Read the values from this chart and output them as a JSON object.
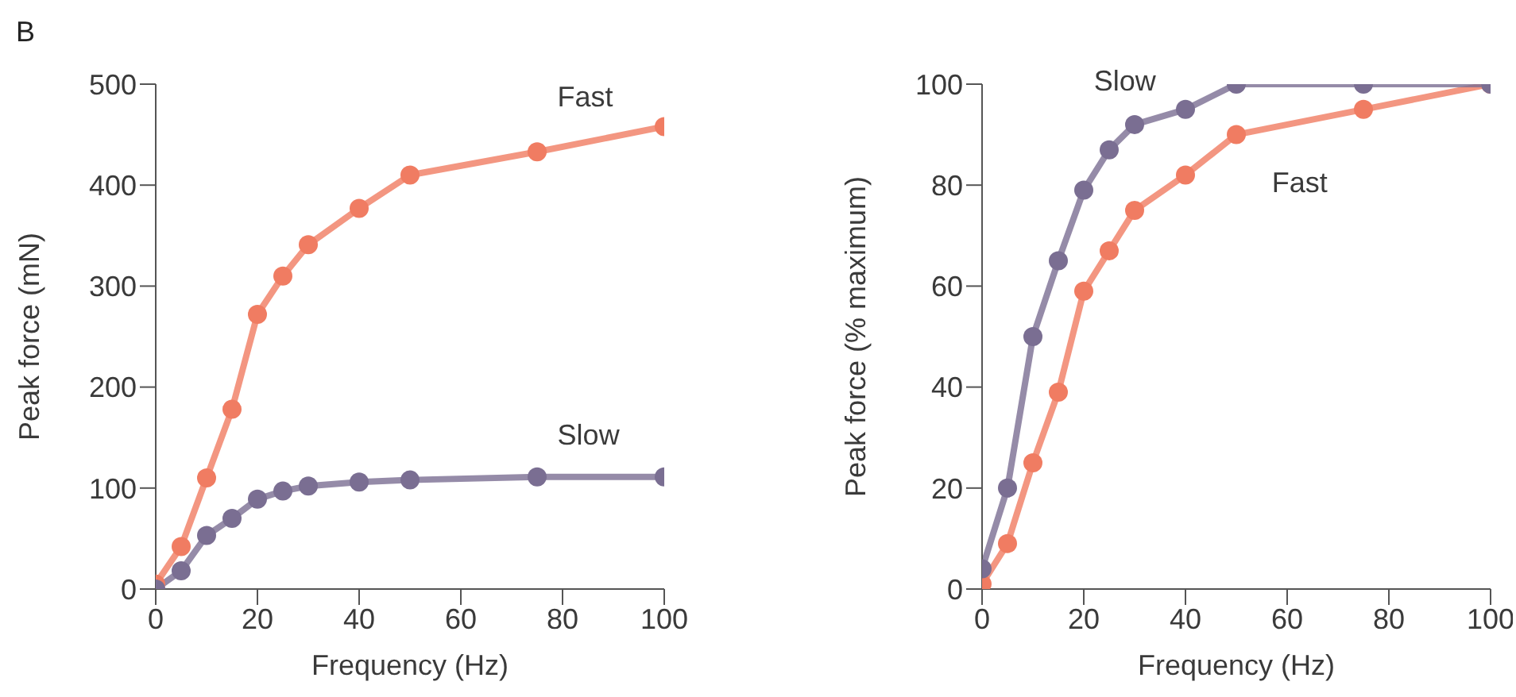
{
  "chart_data": [
    {
      "type": "line",
      "title": "B",
      "xlabel": "Frequency (Hz)",
      "ylabel": "Peak force (mN)",
      "x": [
        0,
        5,
        10,
        15,
        20,
        25,
        30,
        40,
        50,
        75,
        100
      ],
      "xlim": [
        0,
        100
      ],
      "xticks": [
        0,
        20,
        40,
        60,
        80,
        100
      ],
      "ylim": [
        0,
        500
      ],
      "yticks": [
        0,
        100,
        200,
        300,
        400,
        500
      ],
      "grid": false,
      "legend": false,
      "marker": "circle",
      "line_style": "solid",
      "series": [
        {
          "name": "Fast",
          "color": "#f07c62",
          "values": [
            5,
            42,
            110,
            178,
            272,
            310,
            341,
            377,
            410,
            433,
            458
          ]
        },
        {
          "name": "Slow",
          "color": "#7a6e92",
          "values": [
            0,
            18,
            53,
            70,
            89,
            97,
            102,
            106,
            108,
            111,
            111
          ]
        }
      ]
    },
    {
      "type": "line",
      "xlabel": "Frequency (Hz)",
      "ylabel": "Peak force (% maximum)",
      "x": [
        0,
        5,
        10,
        15,
        20,
        25,
        30,
        40,
        50,
        75,
        100
      ],
      "xlim": [
        0,
        100
      ],
      "xticks": [
        0,
        20,
        40,
        60,
        80,
        100
      ],
      "ylim": [
        0,
        100
      ],
      "yticks": [
        0,
        20,
        40,
        60,
        80,
        100
      ],
      "grid": false,
      "legend": false,
      "marker": "circle",
      "line_style": "solid",
      "series": [
        {
          "name": "Fast",
          "color": "#f07c62",
          "values": [
            1,
            9,
            25,
            39,
            59,
            67,
            75,
            82,
            90,
            95,
            100
          ]
        },
        {
          "name": "Slow",
          "color": "#7a6e92",
          "values": [
            4,
            20,
            50,
            65,
            79,
            87,
            92,
            95,
            100,
            100,
            100
          ]
        }
      ]
    }
  ]
}
